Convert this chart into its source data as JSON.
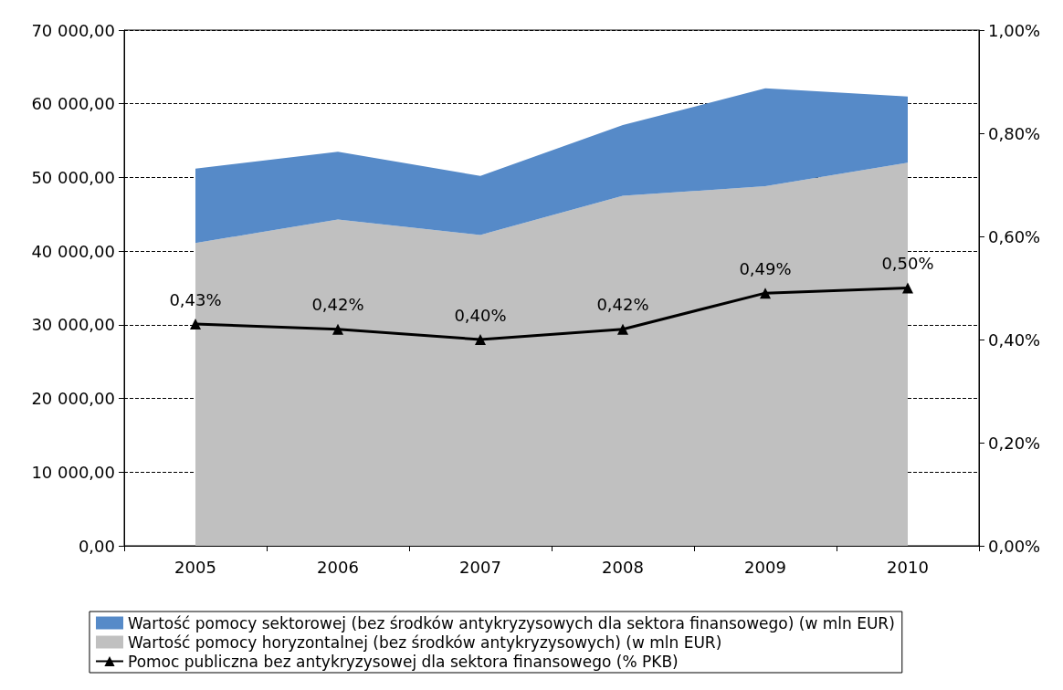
{
  "chart_data": {
    "type": "area",
    "stacked": true,
    "categories": [
      "2005",
      "2006",
      "2007",
      "2008",
      "2009",
      "2010"
    ],
    "series": [
      {
        "name": "Wartość pomocy horyzontalnej (bez środków antykryzysowych) (w mln EUR)",
        "color": "#c0c0c0",
        "values": [
          41100,
          44300,
          42200,
          47500,
          48800,
          52000
        ]
      },
      {
        "name": "Wartość pomocy sektorowej (bez środków antykryzysowych dla sektora finansowego) (w mln EUR)",
        "color": "#568ac8",
        "values": [
          10100,
          9200,
          8000,
          9600,
          13300,
          9000
        ]
      },
      {
        "name": "Pomoc publiczna bez antykryzysowej dla sektora finansowego (% PKB)",
        "type": "line",
        "axis": "y2",
        "color": "#000000",
        "marker": "triangle",
        "values": [
          0.43,
          0.42,
          0.4,
          0.42,
          0.49,
          0.5
        ],
        "value_labels": [
          "0,43%",
          "0,42%",
          "0,40%",
          "0,42%",
          "0,49%",
          "0,50%"
        ]
      }
    ],
    "ylim": [
      0,
      70000
    ],
    "yticks": [
      {
        "value": 0,
        "label": "0,00"
      },
      {
        "value": 10000,
        "label": "10 000,00"
      },
      {
        "value": 20000,
        "label": "20 000,00"
      },
      {
        "value": 30000,
        "label": "30 000,00"
      },
      {
        "value": 40000,
        "label": "40 000,00"
      },
      {
        "value": 50000,
        "label": "50 000,00"
      },
      {
        "value": 60000,
        "label": "60 000,00"
      },
      {
        "value": 70000,
        "label": "70 000,00"
      }
    ],
    "y2lim": [
      0,
      1
    ],
    "y2ticks": [
      {
        "value": 0,
        "label": "0,00%"
      },
      {
        "value": 0.2,
        "label": "0,20%"
      },
      {
        "value": 0.4,
        "label": "0,40%"
      },
      {
        "value": 0.6,
        "label": "0,60%"
      },
      {
        "value": 0.8,
        "label": "0,80%"
      },
      {
        "value": 1,
        "label": "1,00%"
      }
    ],
    "grid": "y",
    "legend": "bottom",
    "line_style": "solid"
  }
}
